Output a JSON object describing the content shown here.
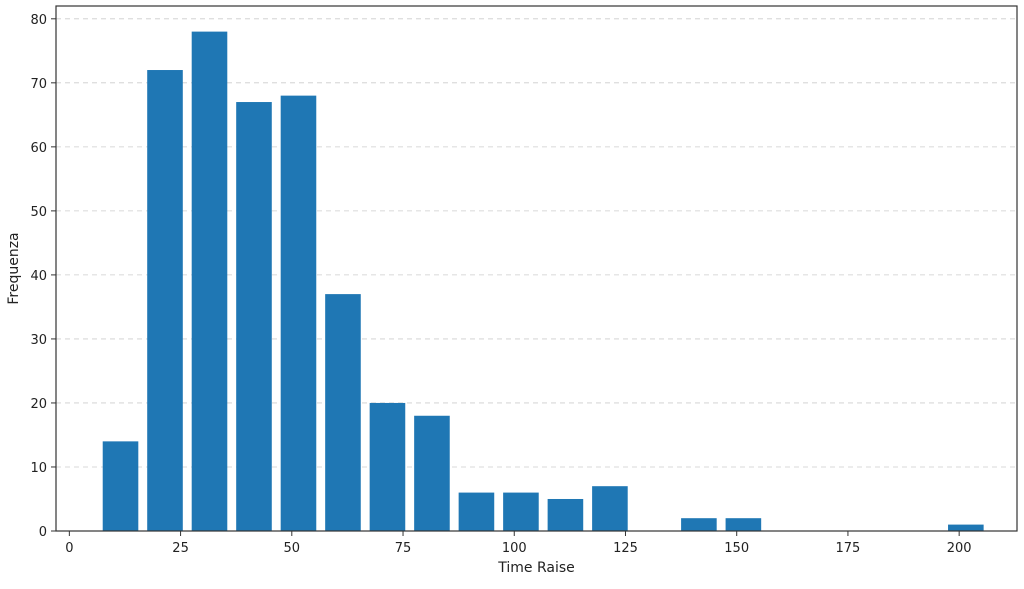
{
  "chart_data": {
    "type": "bar",
    "title": "",
    "xlabel": "Time Raise",
    "ylabel": "Frequenza",
    "xlim": [
      -3,
      213
    ],
    "ylim": [
      0,
      82
    ],
    "xticks": [
      0,
      25,
      50,
      75,
      100,
      125,
      150,
      175,
      200
    ],
    "yticks": [
      0,
      10,
      20,
      30,
      40,
      50,
      60,
      70,
      80
    ],
    "bin_width": 10,
    "bar_color": "#1f77b4",
    "grid": {
      "y": true,
      "x": false,
      "style": "dashed"
    },
    "bins": [
      {
        "x": 10,
        "value": 14
      },
      {
        "x": 20,
        "value": 72
      },
      {
        "x": 30,
        "value": 78
      },
      {
        "x": 40,
        "value": 67
      },
      {
        "x": 50,
        "value": 68
      },
      {
        "x": 60,
        "value": 37
      },
      {
        "x": 70,
        "value": 20
      },
      {
        "x": 80,
        "value": 18
      },
      {
        "x": 90,
        "value": 6
      },
      {
        "x": 100,
        "value": 6
      },
      {
        "x": 110,
        "value": 5
      },
      {
        "x": 120,
        "value": 7
      },
      {
        "x": 130,
        "value": 0
      },
      {
        "x": 140,
        "value": 2
      },
      {
        "x": 150,
        "value": 2
      },
      {
        "x": 160,
        "value": 0
      },
      {
        "x": 170,
        "value": 0
      },
      {
        "x": 180,
        "value": 0
      },
      {
        "x": 190,
        "value": 0
      },
      {
        "x": 200,
        "value": 1
      }
    ]
  }
}
